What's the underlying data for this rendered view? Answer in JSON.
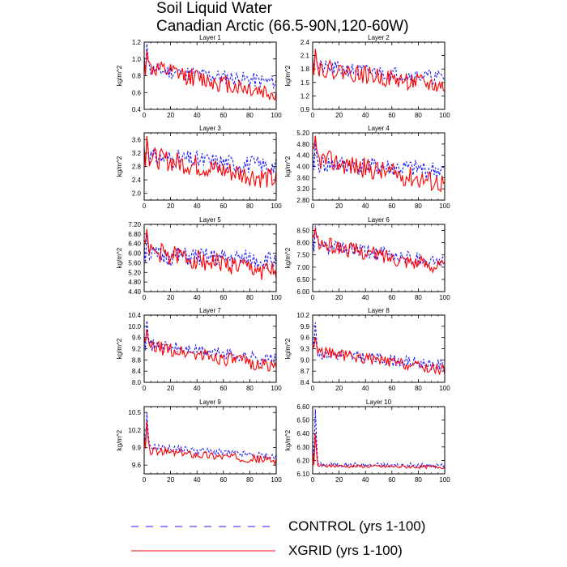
{
  "title": "Soil Liquid Water",
  "subtitle": "Canadian Arctic (66.5-90N,120-60W)",
  "legend": [
    {
      "name": "CONTROL (yrs 1-100)",
      "color": "#1a1aff",
      "style": "dashed"
    },
    {
      "name": "XGRID (yrs 1-100)",
      "color": "#ff0000",
      "style": "solid"
    }
  ],
  "chart_data": [
    {
      "type": "line",
      "title": "Layer 1",
      "ylabel": "kg/m^2",
      "xlim": [
        0,
        100
      ],
      "ylim": [
        0.4,
        1.2
      ],
      "xticks": [
        "0",
        "20",
        "40",
        "60",
        "80",
        "100"
      ],
      "yticks": [
        "0.4",
        "0.6",
        "0.8",
        "1.0",
        "1.2"
      ],
      "series": [
        {
          "name": "CONTROL (yrs 1-100)",
          "start": 0.88,
          "end": 0.72,
          "amp": 0.09,
          "peak": 1.18,
          "seed": 11
        },
        {
          "name": "XGRID (yrs 1-100)",
          "start": 0.9,
          "end": 0.58,
          "amp": 0.11,
          "peak": 1.1,
          "seed": 12
        }
      ]
    },
    {
      "type": "line",
      "title": "Layer 2",
      "ylabel": "kg/m^2",
      "xlim": [
        0,
        100
      ],
      "ylim": [
        0.9,
        2.4
      ],
      "xticks": [
        "0",
        "20",
        "40",
        "60",
        "80",
        "100"
      ],
      "yticks": [
        "0.9",
        "1.2",
        "1.5",
        "1.8",
        "2.1",
        "2.4"
      ],
      "series": [
        {
          "name": "CONTROL (yrs 1-100)",
          "start": 1.85,
          "end": 1.6,
          "amp": 0.16,
          "peak": 2.2,
          "seed": 21
        },
        {
          "name": "XGRID (yrs 1-100)",
          "start": 1.85,
          "end": 1.4,
          "amp": 0.2,
          "peak": 2.25,
          "seed": 22
        }
      ]
    },
    {
      "type": "line",
      "title": "Layer 3",
      "ylabel": "kg/m^2",
      "xlim": [
        0,
        100
      ],
      "ylim": [
        1.8,
        3.8
      ],
      "xticks": [
        "0",
        "20",
        "40",
        "60",
        "80",
        "100"
      ],
      "yticks": [
        "2.0",
        "2.4",
        "2.8",
        "3.2",
        "3.6"
      ],
      "series": [
        {
          "name": "CONTROL (yrs 1-100)",
          "start": 3.1,
          "end": 2.8,
          "amp": 0.28,
          "peak": 3.6,
          "seed": 31
        },
        {
          "name": "XGRID (yrs 1-100)",
          "start": 3.1,
          "end": 2.4,
          "amp": 0.32,
          "peak": 3.7,
          "seed": 32
        }
      ]
    },
    {
      "type": "line",
      "title": "Layer 4",
      "ylabel": "kg/m^2",
      "xlim": [
        0,
        100
      ],
      "ylim": [
        2.8,
        5.2
      ],
      "xticks": [
        "0",
        "20",
        "40",
        "60",
        "80",
        "100"
      ],
      "yticks": [
        "2.80",
        "3.20",
        "3.60",
        "4.00",
        "4.40",
        "4.80",
        "5.20"
      ],
      "series": [
        {
          "name": "CONTROL (yrs 1-100)",
          "start": 4.1,
          "end": 3.85,
          "amp": 0.33,
          "peak": 4.9,
          "seed": 41
        },
        {
          "name": "XGRID (yrs 1-100)",
          "start": 4.3,
          "end": 3.4,
          "amp": 0.38,
          "peak": 5.1,
          "seed": 42
        }
      ]
    },
    {
      "type": "line",
      "title": "Layer 5",
      "ylabel": "kg/m^2",
      "xlim": [
        0,
        100
      ],
      "ylim": [
        4.4,
        7.2
      ],
      "xticks": [
        "0",
        "20",
        "40",
        "60",
        "80",
        "100"
      ],
      "yticks": [
        "4.40",
        "4.80",
        "5.20",
        "5.60",
        "6.00",
        "6.40",
        "6.80",
        "7.20"
      ],
      "series": [
        {
          "name": "CONTROL (yrs 1-100)",
          "start": 5.9,
          "end": 5.7,
          "amp": 0.4,
          "peak": 6.9,
          "seed": 51
        },
        {
          "name": "XGRID (yrs 1-100)",
          "start": 6.1,
          "end": 5.2,
          "amp": 0.42,
          "peak": 7.0,
          "seed": 52
        }
      ]
    },
    {
      "type": "line",
      "title": "Layer 6",
      "ylabel": "kg/m^2",
      "xlim": [
        0,
        100
      ],
      "ylim": [
        6.0,
        8.75
      ],
      "xticks": [
        "0",
        "20",
        "40",
        "60",
        "80",
        "100"
      ],
      "yticks": [
        "6.00",
        "6.50",
        "7.00",
        "7.50",
        "8.00",
        "8.50"
      ],
      "series": [
        {
          "name": "CONTROL (yrs 1-100)",
          "start": 7.9,
          "end": 7.2,
          "amp": 0.3,
          "peak": 8.7,
          "seed": 61
        },
        {
          "name": "XGRID (yrs 1-100)",
          "start": 8.0,
          "end": 7.0,
          "amp": 0.32,
          "peak": 8.6,
          "seed": 62
        }
      ]
    },
    {
      "type": "line",
      "title": "Layer 7",
      "ylabel": "kg/m^2",
      "xlim": [
        0,
        100
      ],
      "ylim": [
        8.0,
        10.4
      ],
      "xticks": [
        "0",
        "20",
        "40",
        "60",
        "80",
        "100"
      ],
      "yticks": [
        "8.0",
        "8.4",
        "8.8",
        "9.2",
        "9.6",
        "10.0",
        "10.4"
      ],
      "series": [
        {
          "name": "CONTROL (yrs 1-100)",
          "start": 9.35,
          "end": 8.8,
          "amp": 0.22,
          "peak": 10.2,
          "seed": 71
        },
        {
          "name": "XGRID (yrs 1-100)",
          "start": 9.3,
          "end": 8.55,
          "amp": 0.25,
          "peak": 9.9,
          "seed": 72
        }
      ]
    },
    {
      "type": "line",
      "title": "Layer 8",
      "ylabel": "kg/m^2",
      "xlim": [
        0,
        100
      ],
      "ylim": [
        8.4,
        10.2
      ],
      "xticks": [
        "0",
        "20",
        "40",
        "60",
        "80",
        "100"
      ],
      "yticks": [
        "8.4",
        "8.7",
        "9.0",
        "9.3",
        "9.6",
        "9.9",
        "10.2"
      ],
      "series": [
        {
          "name": "CONTROL (yrs 1-100)",
          "start": 9.2,
          "end": 8.85,
          "amp": 0.16,
          "peak": 10.0,
          "seed": 81
        },
        {
          "name": "XGRID (yrs 1-100)",
          "start": 9.25,
          "end": 8.72,
          "amp": 0.15,
          "peak": 9.6,
          "seed": 82
        }
      ]
    },
    {
      "type": "line",
      "title": "Layer 9",
      "ylabel": "kg/m^2",
      "xlim": [
        0,
        100
      ],
      "ylim": [
        9.45,
        10.6
      ],
      "xticks": [
        "0",
        "20",
        "40",
        "60",
        "80",
        "100"
      ],
      "yticks": [
        "9.6",
        "9.9",
        "10.2",
        "10.5"
      ],
      "series": [
        {
          "name": "CONTROL (yrs 1-100)",
          "start": 9.92,
          "end": 9.74,
          "amp": 0.06,
          "peak": 10.5,
          "seed": 91
        },
        {
          "name": "XGRID (yrs 1-100)",
          "start": 9.85,
          "end": 9.68,
          "amp": 0.07,
          "peak": 10.35,
          "seed": 92
        }
      ]
    },
    {
      "type": "line",
      "title": "Layer 10",
      "ylabel": "kg/m^2",
      "xlim": [
        0,
        100
      ],
      "ylim": [
        6.1,
        6.6
      ],
      "xticks": [
        "0",
        "20",
        "40",
        "60",
        "80",
        "100"
      ],
      "yticks": [
        "6.10",
        "6.20",
        "6.30",
        "6.40",
        "6.50",
        "6.60"
      ],
      "series": [
        {
          "name": "CONTROL (yrs 1-100)",
          "start": 6.17,
          "end": 6.16,
          "amp": 0.018,
          "peak": 6.58,
          "seed": 101
        },
        {
          "name": "XGRID (yrs 1-100)",
          "start": 6.16,
          "end": 6.15,
          "amp": 0.012,
          "peak": 6.4,
          "seed": 102
        }
      ]
    }
  ]
}
